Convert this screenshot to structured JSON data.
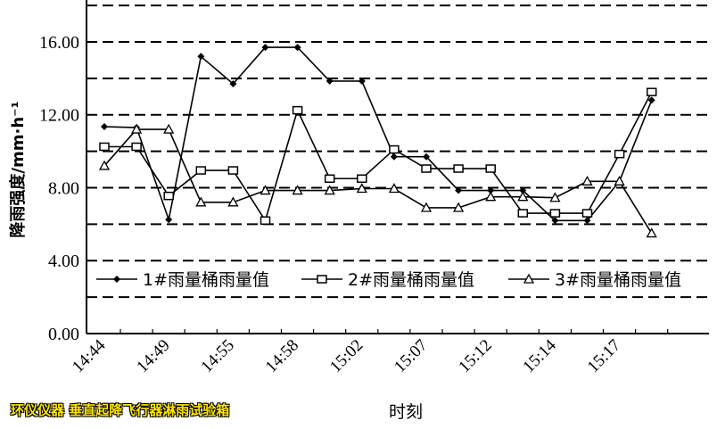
{
  "chart_data": {
    "type": "line",
    "title": "",
    "xlabel": "时刻",
    "ylabel": "降雨强度/mm·h⁻¹",
    "ylim": [
      0,
      18
    ],
    "yticks": [
      "0.00",
      "4.00",
      "8.00",
      "12.00",
      "16.00"
    ],
    "ytick_values": [
      0,
      4,
      8,
      12,
      16
    ],
    "grid": "horizontal dashed every 2.00",
    "legend_position": "bottom inside plot",
    "categories": [
      "14:44",
      "",
      "14:49",
      "",
      "14:55",
      "",
      "14:58",
      "",
      "15:02",
      "",
      "15:07",
      "",
      "15:12",
      "",
      "15:14",
      "",
      "15:17",
      ""
    ],
    "series": [
      {
        "name": "1#雨量桶雨量值",
        "marker": "diamond",
        "values": [
          11.35,
          11.3,
          6.25,
          15.2,
          13.7,
          15.7,
          15.7,
          13.85,
          13.85,
          9.7,
          9.7,
          7.85,
          7.85,
          7.85,
          6.2,
          6.2,
          8.35,
          12.8
        ]
      },
      {
        "name": "2#雨量桶雨量值",
        "marker": "square",
        "values": [
          10.25,
          10.25,
          7.55,
          8.95,
          8.95,
          6.2,
          12.25,
          8.5,
          8.5,
          10.1,
          9.05,
          9.05,
          9.05,
          6.6,
          6.6,
          6.6,
          9.85,
          13.25
        ]
      },
      {
        "name": "3#雨量桶雨量值",
        "marker": "triangle",
        "values": [
          9.2,
          11.2,
          11.2,
          7.2,
          7.2,
          7.85,
          7.85,
          7.85,
          7.95,
          7.95,
          6.9,
          6.9,
          7.5,
          7.5,
          7.45,
          8.35,
          8.35,
          5.5
        ]
      }
    ]
  },
  "watermark": "环仪仪器 垂直起降飞行器淋雨试验箱"
}
